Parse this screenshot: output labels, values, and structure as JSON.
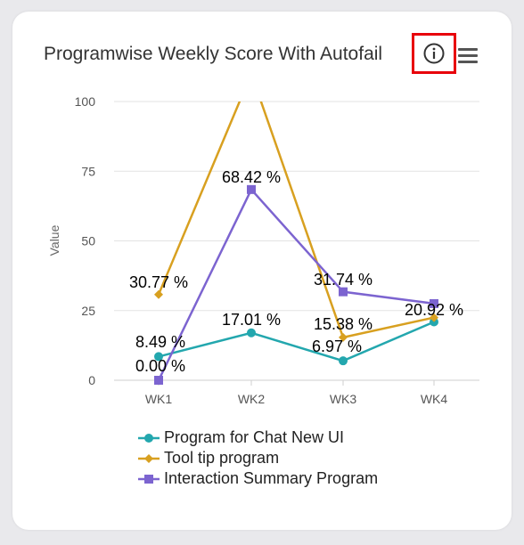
{
  "card": {
    "title": "Programwise Weekly Score With Autofail",
    "info_icon": "info-circle-icon",
    "menu_icon": "hamburger-menu-icon"
  },
  "chart_data": {
    "type": "line",
    "title": "Programwise Weekly Score With Autofail",
    "xlabel": "",
    "ylabel": "Value",
    "categories": [
      "WK1",
      "WK2",
      "WK3",
      "WK4"
    ],
    "ylim": [
      0,
      100
    ],
    "yticks": [
      0,
      25,
      50,
      75,
      100
    ],
    "grid": true,
    "legend_position": "bottom",
    "series": [
      {
        "name": "Program for Chat New UI",
        "color": "#23a7ae",
        "marker": "circle",
        "values": [
          8.49,
          17.01,
          6.97,
          20.92
        ],
        "labels": [
          "8.49 %",
          "17.01 %",
          "6.97 %",
          "20.92 %"
        ]
      },
      {
        "name": "Tool tip program",
        "color": "#d8a020",
        "marker": "diamond",
        "values": [
          30.77,
          110,
          15.38,
          22.5
        ],
        "labels": [
          "30.77 %",
          "",
          "15.38 %",
          ""
        ]
      },
      {
        "name": "Interaction Summary Program",
        "color": "#7c64d0",
        "marker": "square",
        "values": [
          0.0,
          68.42,
          31.74,
          27.5
        ],
        "labels": [
          "0.00 %",
          "68.42 %",
          "31.74 %",
          ""
        ]
      }
    ]
  }
}
